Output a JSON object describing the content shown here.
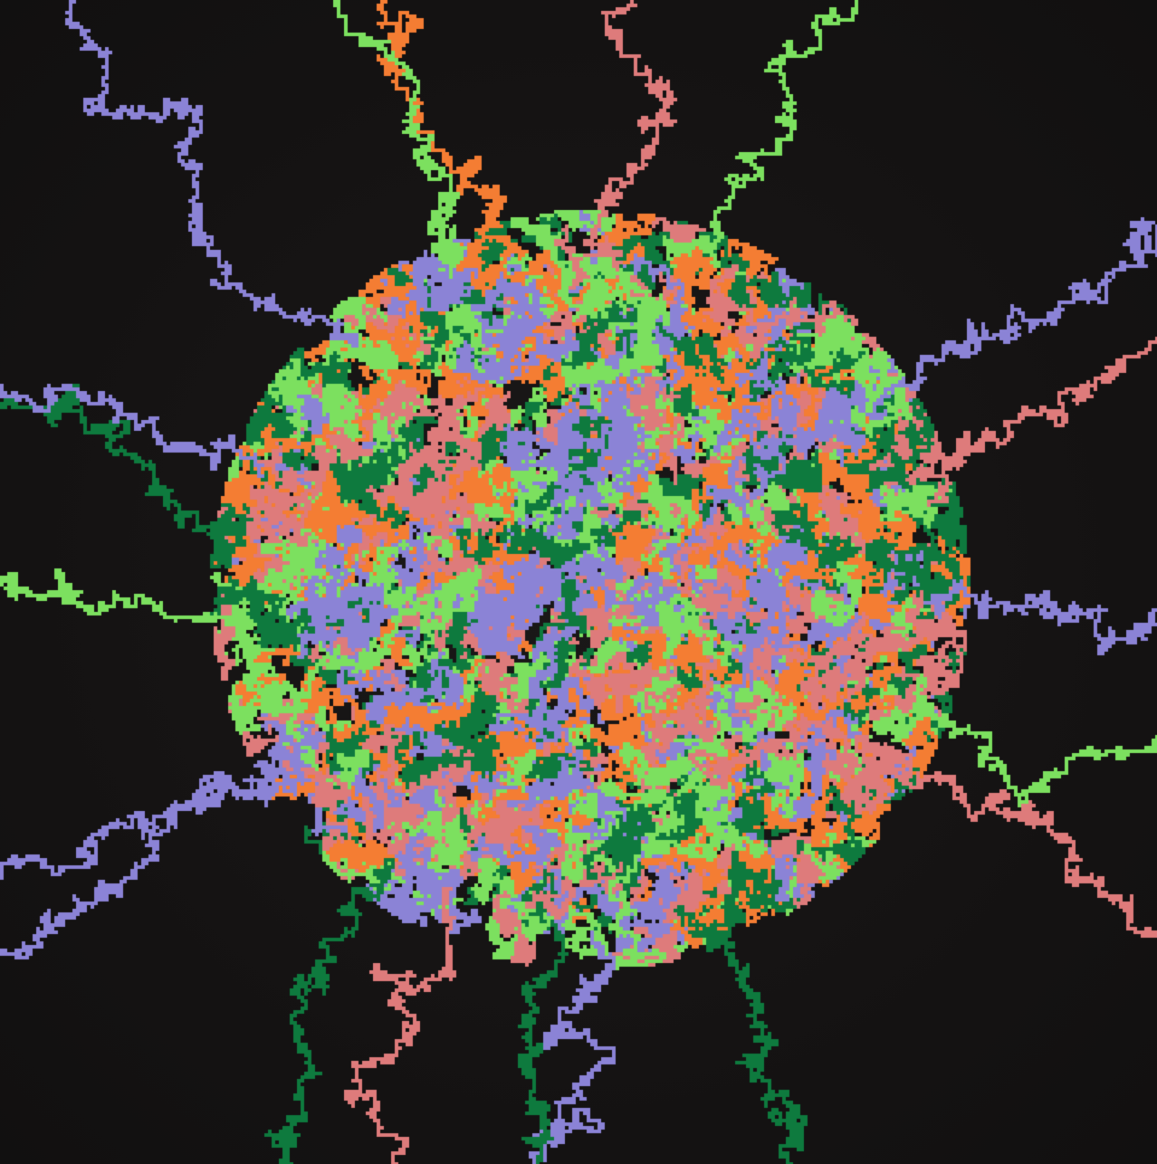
{
  "artwork": {
    "kind": "random-walk-cluster",
    "background_color": "#151313",
    "palette": [
      {
        "name": "orange",
        "color": "#f47d33"
      },
      {
        "name": "lavender",
        "color": "#8b83d6"
      },
      {
        "name": "light-green",
        "color": "#7ce05f"
      },
      {
        "name": "dark-green",
        "color": "#0e7a3e"
      },
      {
        "name": "salmon",
        "color": "#de7b7b"
      }
    ]
  }
}
